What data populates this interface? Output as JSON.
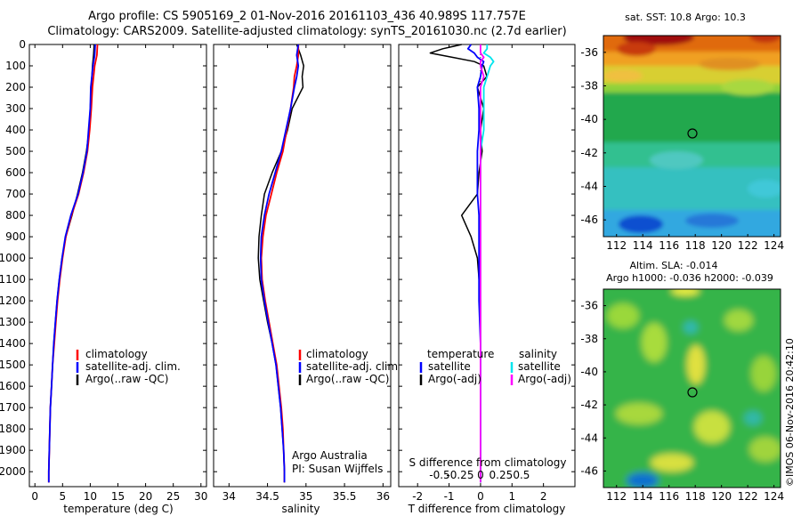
{
  "header": {
    "line1": "Argo profile: CS 5905169_2 01-Nov-2016 20161103_436 40.989S 117.757E",
    "line2": "Climatology: CARS2009. Satellite-adjusted climatology: synTS_20161030.nc (2.7d earlier)"
  },
  "colors": {
    "climatology": "#ff0000",
    "satellite": "#0000ff",
    "argo": "#000000",
    "sal_satellite": "#00e5ee",
    "sal_argo": "#ff00ff"
  },
  "chart_data": [
    {
      "id": "temperature",
      "type": "line",
      "xlabel": "temperature (deg C)",
      "ylabel": "",
      "xlim": [
        -1,
        31
      ],
      "ylim": [
        2070,
        0
      ],
      "xticks": [
        "0",
        "5",
        "10",
        "15",
        "20",
        "25",
        "30"
      ],
      "yticks": [
        "0",
        "100",
        "200",
        "300",
        "400",
        "500",
        "600",
        "700",
        "800",
        "900",
        "1000",
        "1100",
        "1200",
        "1300",
        "1400",
        "1500",
        "1600",
        "1700",
        "1800",
        "1900",
        "2000"
      ],
      "legend": [
        "climatology",
        "satellite-adj. clim.",
        "Argo(..raw -QC)"
      ],
      "depth": [
        0,
        50,
        100,
        200,
        300,
        400,
        500,
        600,
        700,
        800,
        900,
        1000,
        1100,
        1200,
        1300,
        1400,
        1500,
        1600,
        1700,
        1800,
        1900,
        2000,
        2050
      ],
      "series": [
        {
          "name": "climatology",
          "values": [
            11.3,
            11.2,
            10.8,
            10.4,
            10.2,
            9.9,
            9.5,
            8.8,
            7.9,
            6.6,
            5.6,
            5.0,
            4.5,
            4.1,
            3.8,
            3.5,
            3.2,
            3.0,
            2.8,
            2.7,
            2.6,
            2.5,
            2.5
          ]
        },
        {
          "name": "satellite-adj. clim.",
          "values": [
            10.9,
            10.8,
            10.5,
            10.1,
            10.0,
            9.7,
            9.4,
            8.7,
            7.8,
            6.5,
            5.5,
            4.9,
            4.4,
            4.0,
            3.7,
            3.4,
            3.2,
            3.0,
            2.8,
            2.7,
            2.6,
            2.5,
            2.5
          ]
        },
        {
          "name": "Argo",
          "values": [
            10.7,
            10.6,
            10.4,
            10.2,
            10.0,
            9.8,
            9.3,
            8.6,
            7.7,
            6.7,
            5.6,
            4.9,
            4.4,
            4.0,
            3.7,
            3.4,
            3.2,
            3.0,
            2.8,
            2.7,
            2.6,
            2.5,
            2.5
          ]
        }
      ]
    },
    {
      "id": "salinity",
      "type": "line",
      "xlabel": "salinity",
      "xlim": [
        33.8,
        36.1
      ],
      "ylim": [
        2070,
        0
      ],
      "xticks": [
        "34",
        "34.5",
        "35",
        "35.5",
        "36"
      ],
      "legend": [
        "climatology",
        "satellite-adj. clim.",
        "Argo(..raw -QC)"
      ],
      "note": [
        "Argo Australia",
        "PI: Susan Wijffels"
      ],
      "depth": [
        0,
        50,
        100,
        150,
        200,
        300,
        400,
        500,
        600,
        700,
        800,
        900,
        1000,
        1100,
        1200,
        1300,
        1400,
        1500,
        1600,
        1700,
        1800,
        1900,
        2000,
        2050
      ],
      "series": [
        {
          "name": "climatology",
          "values": [
            34.9,
            34.9,
            34.88,
            34.85,
            34.84,
            34.8,
            34.75,
            34.7,
            34.62,
            34.55,
            34.48,
            34.44,
            34.42,
            34.43,
            34.47,
            34.52,
            34.57,
            34.62,
            34.65,
            34.68,
            34.7,
            34.71,
            34.72,
            34.72
          ]
        },
        {
          "name": "satellite-adj. clim.",
          "values": [
            34.9,
            34.88,
            34.9,
            34.88,
            34.85,
            34.8,
            34.74,
            34.68,
            34.6,
            34.52,
            34.46,
            34.42,
            34.41,
            34.42,
            34.46,
            34.51,
            34.56,
            34.61,
            34.64,
            34.67,
            34.69,
            34.71,
            34.72,
            34.72
          ]
        },
        {
          "name": "Argo",
          "values": [
            34.88,
            34.93,
            34.97,
            34.95,
            34.96,
            34.82,
            34.76,
            34.68,
            34.56,
            34.46,
            34.42,
            34.39,
            34.38,
            34.4,
            34.45,
            34.5,
            34.56,
            34.61,
            34.64,
            34.67,
            34.69,
            34.71,
            34.72,
            34.72
          ]
        }
      ]
    },
    {
      "id": "difference",
      "type": "line",
      "xlabel": "T difference from climatology",
      "xlabel2": "S difference from climatology",
      "xlim": [
        -2.6,
        3.0
      ],
      "ylim": [
        2070,
        0
      ],
      "xticks": [
        "-2",
        "-1",
        "0",
        "1",
        "2"
      ],
      "xticks_top": [
        "-0.5",
        "-0.25",
        "0",
        "0.25",
        "0.5"
      ],
      "legend_titles": [
        "temperature",
        "salinity"
      ],
      "legend": [
        "satellite",
        "Argo(-adj)",
        "satellite",
        "Argo(-adj)"
      ],
      "depth": [
        0,
        20,
        40,
        60,
        80,
        100,
        150,
        200,
        300,
        400,
        500,
        600,
        700,
        800,
        900,
        1000,
        1100,
        1200,
        1400,
        1600,
        1800,
        2000,
        2050
      ],
      "series": [
        {
          "name": "T satellite",
          "values": [
            -0.3,
            -0.4,
            -0.2,
            -0.1,
            0.1,
            0.05,
            0.0,
            -0.1,
            -0.05,
            -0.05,
            -0.1,
            -0.1,
            -0.1,
            -0.05,
            -0.05,
            -0.05,
            -0.05,
            -0.05,
            0.0,
            0.0,
            0.0,
            0.0,
            0.0
          ]
        },
        {
          "name": "T Argo(-adj)",
          "values": [
            -0.6,
            -1.2,
            -1.6,
            -0.9,
            -0.2,
            0.1,
            0.2,
            -0.1,
            0.1,
            0.0,
            0.05,
            -0.05,
            -0.1,
            -0.6,
            -0.3,
            -0.1,
            -0.05,
            0.0,
            0.0,
            0.0,
            0.0,
            0.0,
            0.0
          ]
        },
        {
          "name": "S satellite",
          "values": [
            0.02,
            0.02,
            0.01,
            0.03,
            0.04,
            0.03,
            0.02,
            0.01,
            0.01,
            0.01,
            0.0,
            0.0,
            0.0,
            0.0,
            0.0,
            0.0,
            0.0,
            0.0,
            0.0,
            0.0,
            0.0,
            0.0,
            0.0
          ]
        },
        {
          "name": "S Argo(-adj)",
          "values": [
            0.0,
            0.0,
            0.0,
            0.01,
            0.0,
            0.0,
            0.01,
            0.0,
            0.0,
            0.0,
            0.0,
            0.0,
            0.0,
            0.0,
            0.0,
            0.0,
            0.0,
            0.0,
            0.0,
            0.0,
            0.0,
            0.0,
            0.0
          ]
        }
      ]
    },
    {
      "id": "sst_map",
      "type": "heatmap",
      "title": "sat. SST: 10.8  Argo: 10.3",
      "xlim": [
        111,
        124.5
      ],
      "ylim": [
        -47,
        -35
      ],
      "xticks": [
        "112",
        "114",
        "116",
        "118",
        "120",
        "122",
        "124"
      ],
      "yticks": [
        "-36",
        "-38",
        "-40",
        "-42",
        "-44",
        "-46"
      ],
      "marker": {
        "lon": 117.757,
        "lat": -40.989
      }
    },
    {
      "id": "sla_map",
      "type": "heatmap",
      "title": "Altim. SLA: -0.014",
      "subtitle": "Argo h1000: -0.036 h2000: -0.039",
      "xlim": [
        111,
        124.5
      ],
      "ylim": [
        -47,
        -35
      ],
      "xticks": [
        "112",
        "114",
        "116",
        "118",
        "120",
        "122",
        "124"
      ],
      "yticks": [
        "-36",
        "-38",
        "-40",
        "-42",
        "-44",
        "-46"
      ],
      "marker": {
        "lon": 117.757,
        "lat": -40.989
      }
    }
  ],
  "footer": {
    "credit": "©IMOS 06-Nov-2016 20:42:10"
  }
}
